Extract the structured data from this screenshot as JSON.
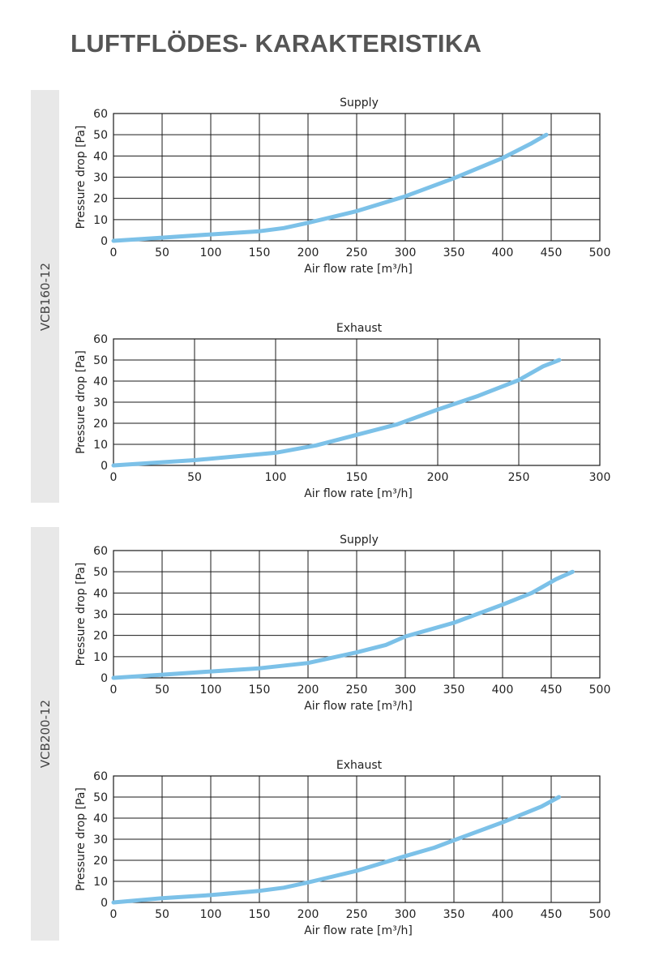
{
  "page": {
    "title": "LUFTFLÖDES- KARAKTERISTIKA",
    "line_color": "#7cc1e8",
    "band_color": "#e8e8e8",
    "models": [
      "VCB160-12",
      "VCB200-12"
    ]
  },
  "chart_data": [
    {
      "type": "line",
      "model": "VCB160-12",
      "title": "Supply",
      "xlabel": "Air flow rate [m³/h]",
      "ylabel": "Pressure drop [Pa]",
      "xlim": [
        0,
        500
      ],
      "ylim": [
        0,
        60
      ],
      "xticks": [
        0,
        50,
        100,
        150,
        200,
        250,
        300,
        350,
        400,
        450,
        500
      ],
      "yticks": [
        0,
        10,
        20,
        30,
        40,
        50,
        60
      ],
      "grid": true,
      "series": [
        {
          "x": [
            0,
            50,
            100,
            150,
            175,
            200,
            250,
            300,
            350,
            400,
            430,
            445
          ],
          "y": [
            0,
            1.5,
            3,
            4.5,
            6,
            8.5,
            14,
            21,
            29.5,
            39,
            46,
            50
          ]
        }
      ]
    },
    {
      "type": "line",
      "model": "VCB160-12",
      "title": "Exhaust",
      "xlabel": "Air flow rate [m³/h]",
      "ylabel": "Pressure drop [Pa]",
      "xlim": [
        0,
        300
      ],
      "ylim": [
        0,
        60
      ],
      "xticks": [
        0,
        50,
        100,
        150,
        200,
        250,
        300
      ],
      "yticks": [
        0,
        10,
        20,
        30,
        40,
        50,
        60
      ],
      "grid": true,
      "series": [
        {
          "x": [
            0,
            50,
            100,
            125,
            150,
            175,
            200,
            225,
            250,
            265,
            275
          ],
          "y": [
            0,
            2.5,
            6,
            9.5,
            14.5,
            19.5,
            26.5,
            33,
            40.5,
            47,
            50
          ]
        }
      ]
    },
    {
      "type": "line",
      "model": "VCB200-12",
      "title": "Supply",
      "xlabel": "Air flow rate [m³/h]",
      "ylabel": "Pressure drop [Pa]",
      "xlim": [
        0,
        500
      ],
      "ylim": [
        0,
        60
      ],
      "xticks": [
        0,
        50,
        100,
        150,
        200,
        250,
        300,
        350,
        400,
        450,
        500
      ],
      "yticks": [
        0,
        10,
        20,
        30,
        40,
        50,
        60
      ],
      "grid": true,
      "series": [
        {
          "x": [
            0,
            50,
            100,
            150,
            200,
            250,
            280,
            300,
            350,
            400,
            430,
            455,
            472
          ],
          "y": [
            0,
            1.5,
            3,
            4.5,
            7,
            12,
            15.5,
            19.5,
            26,
            34.5,
            40,
            46.5,
            50
          ]
        }
      ]
    },
    {
      "type": "line",
      "model": "VCB200-12",
      "title": "Exhaust",
      "xlabel": "Air flow rate [m³/h]",
      "ylabel": "Pressure drop [Pa]",
      "xlim": [
        0,
        500
      ],
      "ylim": [
        0,
        60
      ],
      "xticks": [
        0,
        50,
        100,
        150,
        200,
        250,
        300,
        350,
        400,
        450,
        500
      ],
      "yticks": [
        0,
        10,
        20,
        30,
        40,
        50,
        60
      ],
      "grid": true,
      "series": [
        {
          "x": [
            0,
            50,
            100,
            150,
            175,
            200,
            250,
            300,
            330,
            350,
            400,
            440,
            458
          ],
          "y": [
            0,
            2,
            3.5,
            5.5,
            7,
            9.5,
            15,
            22,
            26,
            29.5,
            38,
            45.5,
            50
          ]
        }
      ]
    }
  ]
}
